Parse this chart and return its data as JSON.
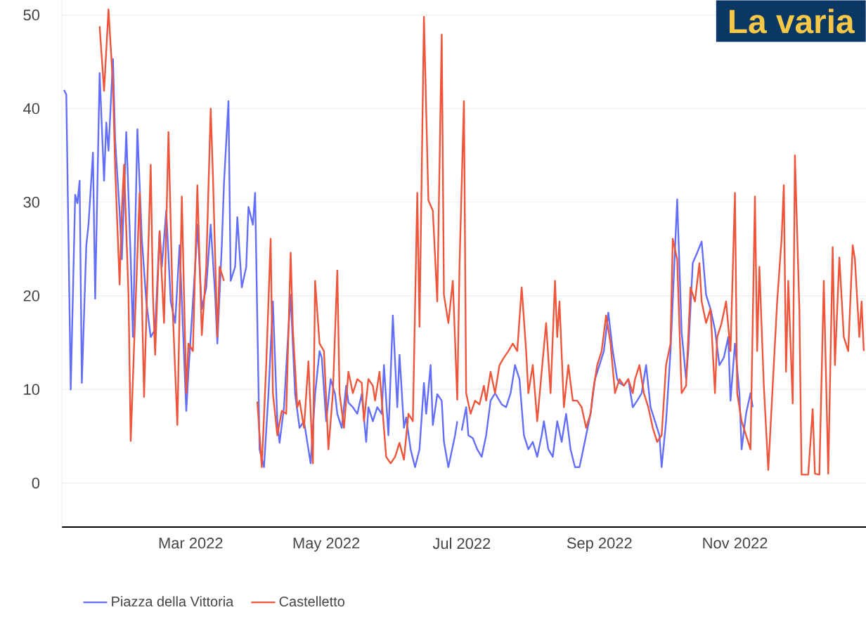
{
  "chart_data": {
    "type": "line",
    "title": "La varia",
    "xlim": [
      "2022-01-02",
      "2022-12-30"
    ],
    "ylim": [
      -4.7,
      51.6
    ],
    "xticks": [
      {
        "value": "2022-03-01",
        "label": "Mar 2022"
      },
      {
        "value": "2022-05-01",
        "label": "May 2022"
      },
      {
        "value": "2022-07-01",
        "label": "Jul 2022"
      },
      {
        "value": "2022-09-01",
        "label": "Sep 2022"
      },
      {
        "value": "2022-11-01",
        "label": "Nov 2022"
      }
    ],
    "yticks": [
      0,
      10,
      20,
      30,
      40,
      50
    ],
    "grid": "y",
    "legend": "bottom",
    "marker": "none",
    "series": [
      {
        "name": "Piazza della Vittoria",
        "color": "#636efa",
        "x": [
          "2022-01-03",
          "2022-01-04",
          "2022-01-06",
          "2022-01-08",
          "2022-01-09",
          "2022-01-10",
          "2022-01-11",
          "2022-01-13",
          "2022-01-14",
          "2022-01-16",
          "2022-01-17",
          "2022-01-19",
          "2022-01-21",
          "2022-01-22",
          "2022-01-23",
          "2022-01-25",
          "2022-01-26",
          "2022-01-28",
          "2022-01-29",
          "2022-01-31",
          "2022-02-02",
          "2022-02-03",
          "2022-02-05",
          "2022-02-07",
          "2022-02-09",
          "2022-02-11",
          "2022-02-13",
          "2022-02-15",
          "2022-02-16",
          "2022-02-18",
          "2022-02-20",
          "2022-02-22",
          "2022-02-24",
          "2022-02-27",
          "2022-02-28",
          "2022-03-03",
          "2022-03-04",
          "2022-03-06",
          "2022-03-08",
          "2022-03-10",
          "2022-03-12",
          "2022-03-13",
          "2022-03-15",
          "2022-03-16",
          "2022-03-18",
          "2022-03-19",
          "2022-03-21",
          "2022-03-22",
          "2022-03-24",
          "2022-03-26",
          "2022-03-27",
          "2022-03-29",
          "2022-03-30",
          "2022-04-01",
          "2022-04-03",
          "2022-04-05",
          "2022-04-07",
          "2022-04-09",
          "2022-04-10",
          "2022-04-12",
          "2022-04-14",
          "2022-04-15",
          "2022-04-17",
          "2022-04-19",
          "2022-04-21",
          "2022-04-23",
          "2022-04-24",
          "2022-04-26",
          "2022-04-28",
          "2022-04-29",
          "2022-05-01",
          "2022-05-03",
          "2022-05-05",
          "2022-05-06",
          "2022-05-08",
          "2022-05-10",
          "2022-05-11",
          "2022-05-13",
          "2022-05-15",
          "2022-05-17",
          "2022-05-19",
          "2022-05-20",
          "2022-05-22",
          "2022-05-24",
          "2022-05-26",
          "2022-05-27",
          "2022-05-29",
          "2022-05-31",
          "2022-06-02",
          "2022-06-03",
          "2022-06-05",
          "2022-06-06",
          "2022-06-08",
          "2022-06-10",
          "2022-06-12",
          "2022-06-14",
          "2022-06-15",
          "2022-06-17",
          "2022-06-18",
          "2022-06-20",
          "2022-06-22",
          "2022-06-23",
          "2022-06-25",
          "2022-06-28",
          "2022-06-29",
          "2022-06-30",
          "2022-07-01",
          "2022-07-03",
          "2022-07-04",
          "2022-07-06",
          "2022-07-08",
          "2022-07-10",
          "2022-07-12",
          "2022-07-14",
          "2022-07-16",
          "2022-07-18",
          "2022-07-19",
          "2022-07-21",
          "2022-07-23",
          "2022-07-25",
          "2022-07-27",
          "2022-07-29",
          "2022-07-31",
          "2022-08-02",
          "2022-08-04",
          "2022-08-06",
          "2022-08-07",
          "2022-08-09",
          "2022-08-11",
          "2022-08-13",
          "2022-08-15",
          "2022-08-17",
          "2022-08-19",
          "2022-08-21",
          "2022-08-23",
          "2022-08-24",
          "2022-08-26",
          "2022-08-28",
          "2022-08-30",
          "2022-09-01",
          "2022-09-03",
          "2022-09-05",
          "2022-09-07",
          "2022-09-09",
          "2022-09-10",
          "2022-09-12",
          "2022-09-14",
          "2022-09-16",
          "2022-09-18",
          "2022-09-20",
          "2022-09-22",
          "2022-09-24",
          "2022-09-26",
          "2022-09-28",
          "2022-09-29",
          "2022-10-01",
          "2022-10-03",
          "2022-10-06",
          "2022-10-08",
          "2022-10-10",
          "2022-10-11",
          "2022-10-13",
          "2022-10-15",
          "2022-10-17",
          "2022-10-19",
          "2022-10-21",
          "2022-10-23",
          "2022-10-25",
          "2022-10-27",
          "2022-10-29",
          "2022-10-30",
          "2022-11-01",
          "2022-11-03",
          "2022-11-04",
          "2022-11-06",
          "2022-11-08",
          "2022-11-09"
        ],
        "values": [
          42,
          41.5,
          10,
          30.8,
          29.9,
          32.3,
          10.7,
          25.4,
          27.6,
          35.3,
          19.7,
          43.8,
          32.3,
          38.5,
          35.5,
          45.3,
          36.6,
          29,
          23.9,
          37.5,
          23.9,
          15.6,
          37.8,
          26.1,
          19.4,
          15.6,
          16.4,
          26.9,
          23.1,
          29.1,
          19.4,
          17.1,
          25.4,
          7.7,
          11.9,
          23.1,
          27.6,
          18.6,
          20.9,
          27.6,
          20.1,
          14.9,
          25.4,
          32.1,
          40.8,
          21.6,
          23.1,
          28.4,
          20.9,
          23.1,
          29.5,
          27.6,
          31,
          3.6,
          1.7,
          9.5,
          19.4,
          6.6,
          4.3,
          8.1,
          16.4,
          20.1,
          9.5,
          5.9,
          6.6,
          3.6,
          2.1,
          9.5,
          14.1,
          13.4,
          6.6,
          11.1,
          9.5,
          7.4,
          5.9,
          10.4,
          8.6,
          8.1,
          7.4,
          9.5,
          4.4,
          8.1,
          6.6,
          8.1,
          7.4,
          12.6,
          5.1,
          17.9,
          8.1,
          13.7,
          5.9,
          7,
          3.6,
          1.7,
          3.6,
          10.7,
          7.4,
          12.6,
          6.2,
          9.5,
          8.8,
          4.4,
          1.7,
          5.1,
          6.6,
          null,
          5.6,
          8.1,
          5.1,
          4.8,
          3.6,
          2.8,
          5.1,
          8.8,
          9.6,
          8.8,
          8.4,
          8.1,
          9.6,
          12.6,
          11.1,
          5.1,
          3.6,
          4.4,
          2.8,
          5.1,
          6.6,
          3.6,
          2.8,
          6.6,
          4.4,
          7.4,
          3.6,
          1.7,
          1.7,
          2.8,
          5.1,
          7.4,
          11.1,
          12.6,
          14.1,
          18.2,
          14.1,
          11.1,
          10.7,
          10.4,
          11.1,
          8.1,
          8.8,
          9.6,
          12.6,
          8.1,
          6.6,
          5.1,
          1.7,
          6.6,
          14.1,
          30.3,
          16.1,
          11.1,
          14.1,
          23.5,
          24.6,
          25.8,
          20.1,
          18.6,
          16.4,
          12.6,
          13.4,
          15.6,
          8.8,
          14.9,
          9.6,
          3.6,
          7.4,
          9.6,
          8.1
        ]
      },
      {
        "name": "Castelletto",
        "color": "#ef553b",
        "x": [
          "2022-01-19",
          "2022-01-21",
          "2022-01-23",
          "2022-01-25",
          "2022-01-26",
          "2022-01-28",
          "2022-01-29",
          "2022-01-30",
          "2022-02-01",
          "2022-02-02",
          "2022-02-04",
          "2022-02-06",
          "2022-02-08",
          "2022-02-11",
          "2022-02-12",
          "2022-02-13",
          "2022-02-15",
          "2022-02-17",
          "2022-02-19",
          "2022-02-21",
          "2022-02-23",
          "2022-02-25",
          "2022-02-27",
          "2022-02-28",
          "2022-03-02",
          "2022-03-04",
          "2022-03-06",
          "2022-03-08",
          "2022-03-10",
          "2022-03-11",
          "2022-03-13",
          "2022-03-14",
          "2022-03-16",
          "2022-03-20",
          "2022-03-31",
          "2022-04-02",
          "2022-04-04",
          "2022-04-06",
          "2022-04-07",
          "2022-04-09",
          "2022-04-11",
          "2022-04-13",
          "2022-04-15",
          "2022-04-16",
          "2022-04-18",
          "2022-04-19",
          "2022-04-21",
          "2022-04-23",
          "2022-04-25",
          "2022-04-26",
          "2022-04-28",
          "2022-04-30",
          "2022-05-02",
          "2022-05-04",
          "2022-05-06",
          "2022-05-07",
          "2022-05-09",
          "2022-05-11",
          "2022-05-13",
          "2022-05-15",
          "2022-05-17",
          "2022-05-18",
          "2022-05-20",
          "2022-05-22",
          "2022-05-23",
          "2022-05-25",
          "2022-05-28",
          "2022-05-30",
          "2022-06-01",
          "2022-06-03",
          "2022-06-05",
          "2022-06-07",
          "2022-06-09",
          "2022-06-11",
          "2022-06-12",
          "2022-06-14",
          "2022-06-16",
          "2022-06-18",
          "2022-06-20",
          "2022-06-22",
          "2022-06-23",
          "2022-06-25",
          "2022-06-27",
          "2022-06-29",
          "2022-06-30",
          "2022-07-02",
          "2022-07-03",
          "2022-07-05",
          "2022-07-07",
          "2022-07-09",
          "2022-07-11",
          "2022-07-12",
          "2022-07-14",
          "2022-07-16",
          "2022-07-18",
          "2022-07-20",
          "2022-07-22",
          "2022-07-24",
          "2022-07-26",
          "2022-07-28",
          "2022-07-30",
          "2022-07-31",
          "2022-08-02",
          "2022-08-04",
          "2022-08-06",
          "2022-08-08",
          "2022-08-10",
          "2022-08-12",
          "2022-08-13",
          "2022-08-14",
          "2022-08-16",
          "2022-08-18",
          "2022-08-20",
          "2022-08-22",
          "2022-08-24",
          "2022-08-26",
          "2022-08-28",
          "2022-08-29",
          "2022-08-31",
          "2022-09-02",
          "2022-09-04",
          "2022-09-06",
          "2022-09-08",
          "2022-09-10",
          "2022-09-12",
          "2022-09-14",
          "2022-09-16",
          "2022-09-17",
          "2022-09-19",
          "2022-09-21",
          "2022-09-23",
          "2022-09-25",
          "2022-09-27",
          "2022-09-29",
          "2022-10-01",
          "2022-10-03",
          "2022-10-04",
          "2022-10-06",
          "2022-10-08",
          "2022-10-10",
          "2022-10-12",
          "2022-10-14",
          "2022-10-16",
          "2022-10-17",
          "2022-10-19",
          "2022-10-21",
          "2022-10-23",
          "2022-10-24",
          "2022-10-26",
          "2022-10-28",
          "2022-10-30",
          "2022-11-01",
          "2022-11-02",
          "2022-11-04",
          "2022-11-06",
          "2022-11-08",
          "2022-11-10",
          "2022-11-11",
          "2022-11-12",
          "2022-11-14",
          "2022-11-16",
          "2022-11-18",
          "2022-11-20",
          "2022-11-22",
          "2022-11-23",
          "2022-11-24",
          "2022-11-25",
          "2022-11-27",
          "2022-11-28",
          "2022-11-30",
          "2022-12-01",
          "2022-12-04",
          "2022-12-06",
          "2022-12-07",
          "2022-12-09",
          "2022-12-11",
          "2022-12-13",
          "2022-12-15",
          "2022-12-16",
          "2022-12-18",
          "2022-12-20",
          "2022-12-22",
          "2022-12-24",
          "2022-12-25",
          "2022-12-27",
          "2022-12-28",
          "2022-12-29"
        ],
        "values": [
          48.8,
          41.9,
          50.6,
          42.6,
          33.6,
          21.2,
          29.1,
          34,
          20.1,
          4.5,
          17.9,
          31,
          9.2,
          34,
          20.1,
          13.7,
          26.9,
          17.1,
          37.5,
          17.9,
          6.2,
          30.6,
          9.6,
          14.9,
          14.1,
          31.8,
          15.8,
          23.1,
          40,
          32.9,
          15.6,
          23.1,
          21.6,
          null,
          8.7,
          1.7,
          12.6,
          26.1,
          9.6,
          5.1,
          7.7,
          7.4,
          24.6,
          16.4,
          8.1,
          8.8,
          5.9,
          13,
          2.1,
          21.6,
          14.9,
          14.1,
          3.6,
          9.6,
          22.7,
          9.6,
          5.9,
          11.9,
          9.6,
          11.1,
          10.7,
          6.6,
          11.1,
          10.4,
          8.8,
          11.9,
          2.8,
          2.1,
          2.8,
          4.3,
          2.5,
          7.4,
          6.6,
          31,
          16.7,
          49.8,
          30.2,
          29.1,
          19.4,
          47.9,
          20.1,
          17.1,
          21.6,
          8.9,
          23.1,
          40.8,
          9.6,
          7.4,
          8.8,
          8.4,
          10.4,
          8.8,
          11.9,
          9.6,
          12.6,
          13.4,
          14.1,
          14.9,
          14.1,
          20.9,
          14.1,
          9.6,
          12.6,
          6.6,
          11.9,
          17.1,
          9.6,
          21.6,
          15.6,
          19.4,
          8.1,
          12.6,
          8.8,
          8.8,
          8.1,
          5.9,
          7.4,
          9.6,
          12.6,
          14.1,
          17.9,
          14.9,
          9.6,
          11.1,
          10.4,
          11.1,
          9.6,
          11.1,
          12.6,
          9.6,
          8.1,
          5.9,
          4.4,
          5.1,
          12.6,
          14.9,
          26.1,
          23.9,
          9.6,
          10.4,
          20.9,
          19.4,
          23.5,
          19.4,
          17.1,
          18.6,
          9.6,
          15.6,
          17.1,
          19.4,
          14.1,
          31,
          9.6,
          6.6,
          5.1,
          3.6,
          30.6,
          14.1,
          23.1,
          10.4,
          1.4,
          10.4,
          19.4,
          26.1,
          31.8,
          11.9,
          21.6,
          8.5,
          35,
          18.6,
          0.9,
          0.9,
          7.9,
          1,
          0.9,
          21.6,
          1,
          25.2,
          12.6,
          24.1,
          15.6,
          14.1,
          25.4,
          23.9,
          15.6,
          19.4,
          14.1
        ]
      }
    ]
  }
}
